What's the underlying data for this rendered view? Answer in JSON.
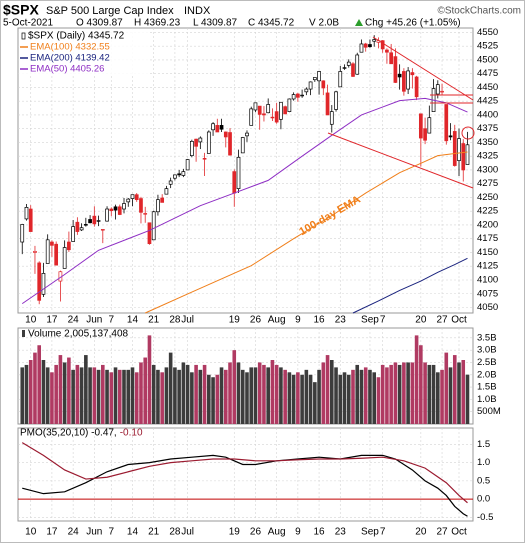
{
  "header": {
    "symbol": "$SPX",
    "name": "S&P 500 Large Cap Index",
    "exchange": "INDX",
    "credit": "©StockCharts.com",
    "date": "5-Oct-2021",
    "open": "O 4309.87",
    "high": "H 4369.23",
    "low": "L 4309.87",
    "close": "C 4345.72",
    "volume": "V 2.0B",
    "change": "Chg +45.26 (+1.05%)"
  },
  "chart_data": [
    {
      "type": "candlestick",
      "name": "$SPX (Daily) 4345.72",
      "up_color": "#000000",
      "down_color": "#e0262a",
      "open": [
        4169,
        4211,
        4229,
        4150,
        4131,
        4074,
        4130,
        4169,
        4165,
        4098,
        4121,
        4169,
        4170,
        4205,
        4191,
        4201,
        4210,
        4216,
        4207,
        4191,
        4207,
        4229,
        4233,
        4233,
        4229,
        4242,
        4248,
        4255,
        4248,
        4220,
        4204,
        4173,
        4224,
        4249,
        4256,
        4274,
        4285,
        4293,
        4290,
        4300,
        4326,
        4356,
        4351,
        4321,
        4330,
        4373,
        4381,
        4381,
        4369,
        4368,
        4297,
        4266,
        4331,
        4362,
        4381,
        4409,
        4416,
        4402,
        4404,
        4396,
        4406,
        4392,
        4415,
        4406,
        4429,
        4438,
        4436,
        4442,
        4447,
        4464,
        4462,
        4462,
        4440,
        4383,
        4410,
        4451,
        4485,
        4490,
        4493,
        4474,
        4514,
        4529,
        4528,
        4534,
        4532,
        4535,
        4518,
        4513,
        4506,
        4474,
        4479,
        4447,
        4477,
        4469,
        4402,
        4375,
        4367,
        4406,
        4438,
        4443,
        4419,
        4362,
        4370,
        4317,
        4348,
        4309.87
      ],
      "high": [
        4202,
        4238,
        4236,
        4162,
        4134,
        4131,
        4183,
        4172,
        4170,
        4117,
        4172,
        4188,
        4209,
        4214,
        4203,
        4213,
        4218,
        4234,
        4217,
        4192,
        4234,
        4232,
        4237,
        4237,
        4249,
        4249,
        4255,
        4258,
        4251,
        4233,
        4204,
        4226,
        4255,
        4256,
        4271,
        4286,
        4292,
        4300,
        4302,
        4320,
        4355,
        4357,
        4361,
        4331,
        4372,
        4387,
        4393,
        4393,
        4370,
        4376,
        4301,
        4337,
        4360,
        4372,
        4415,
        4422,
        4416,
        4416,
        4430,
        4412,
        4422,
        4423,
        4417,
        4430,
        4441,
        4440,
        4446,
        4450,
        4461,
        4468,
        4480,
        4463,
        4455,
        4418,
        4444,
        4489,
        4492,
        4501,
        4496,
        4513,
        4537,
        4531,
        4537,
        4545,
        4541,
        4536,
        4521,
        4529,
        4521,
        4492,
        4485,
        4487,
        4485,
        4471,
        4402,
        4395,
        4417,
        4465,
        4463,
        4457,
        4419,
        4385,
        4382,
        4375,
        4356,
        4369.23
      ],
      "low": [
        4147,
        4208,
        4188,
        4111,
        4056,
        4069,
        4130,
        4142,
        4127,
        4061,
        4121,
        4151,
        4170,
        4182,
        4189,
        4197,
        4203,
        4197,
        4198,
        4167,
        4206,
        4216,
        4210,
        4218,
        4221,
        4233,
        4234,
        4242,
        4203,
        4204,
        4164,
        4173,
        4217,
        4241,
        4256,
        4267,
        4281,
        4287,
        4287,
        4300,
        4323,
        4315,
        4338,
        4289,
        4330,
        4362,
        4369,
        4369,
        4341,
        4326,
        4233,
        4258,
        4331,
        4351,
        4381,
        4405,
        4373,
        4388,
        4403,
        4389,
        4384,
        4374,
        4401,
        4405,
        4426,
        4424,
        4431,
        4436,
        4436,
        4460,
        4437,
        4436,
        4400,
        4368,
        4406,
        4451,
        4482,
        4486,
        4469,
        4473,
        4514,
        4515,
        4522,
        4524,
        4521,
        4513,
        4493,
        4493,
        4458,
        4446,
        4435,
        4438,
        4448,
        4427,
        4306,
        4347,
        4367,
        4406,
        4430,
        4437,
        4346,
        4354,
        4306,
        4289,
        4279,
        4309.87
      ],
      "close": [
        4201,
        4232,
        4188,
        4152,
        4063,
        4112,
        4173,
        4163,
        4127,
        4115,
        4159,
        4155,
        4197,
        4188,
        4195,
        4200,
        4204,
        4202,
        4208,
        4192,
        4229,
        4226,
        4227,
        4219,
        4239,
        4247,
        4255,
        4246,
        4223,
        4221,
        4166,
        4224,
        4246,
        4241,
        4266,
        4280,
        4291,
        4291,
        4297,
        4319,
        4352,
        4343,
        4358,
        4320,
        4369,
        4384,
        4369,
        4374,
        4360,
        4327,
        4258,
        4323,
        4359,
        4367,
        4411,
        4422,
        4401,
        4400,
        4419,
        4395,
        4387,
        4423,
        4402,
        4429,
        4437,
        4432,
        4436,
        4447,
        4460,
        4468,
        4479,
        4449,
        4400,
        4406,
        4442,
        4479,
        4486,
        4496,
        4470,
        4509,
        4529,
        4523,
        4524,
        4537,
        4535,
        4520,
        4514,
        4493,
        4459,
        4469,
        4443,
        4480,
        4473,
        4433,
        4358,
        4354,
        4395,
        4448,
        4455,
        4443,
        4353,
        4360,
        4308,
        4357,
        4300,
        4345.72
      ],
      "lines": [
        {
          "name": "EMA(100) 4332.55",
          "color": "#f07f1a",
          "x": [
            29,
            40,
            54,
            64,
            73,
            81,
            89,
            94,
            98,
            102,
            105
          ],
          "values": [
            4040,
            4078,
            4126,
            4175,
            4217,
            4258,
            4295,
            4312,
            4326,
            4330,
            4332.55
          ]
        },
        {
          "name": "EMA(200) 4139.42",
          "color": "#1a237e",
          "x": [
            78,
            84,
            89,
            94,
            98,
            102,
            105
          ],
          "values": [
            4040,
            4062,
            4081,
            4098,
            4114,
            4128,
            4139.42
          ]
        },
        {
          "name": "EMA(50) 4405.26",
          "color": "#8e2ec4",
          "x": [
            0,
            10,
            18,
            30,
            42,
            50,
            58,
            66,
            73,
            80,
            89,
            95,
            100,
            105
          ],
          "values": [
            4057,
            4110,
            4154,
            4190,
            4235,
            4258,
            4281,
            4325,
            4363,
            4400,
            4426,
            4430,
            4422,
            4405.26
          ]
        }
      ],
      "annotation": "100-day EMA",
      "xlim": [
        -1,
        106.3
      ],
      "xticks": [
        {
          "value": 2,
          "label": "10"
        },
        {
          "value": 7,
          "label": "17"
        },
        {
          "value": 12,
          "label": "24"
        },
        {
          "value": 17,
          "label": "Jun"
        },
        {
          "value": 21,
          "label": "7"
        },
        {
          "value": 26,
          "label": "14"
        },
        {
          "value": 31,
          "label": "21"
        },
        {
          "value": 36,
          "label": "28"
        },
        {
          "value": 39,
          "label": "Jul"
        },
        {
          "value": 50,
          "label": "19"
        },
        {
          "value": 55,
          "label": "26"
        },
        {
          "value": 60,
          "label": "Aug"
        },
        {
          "value": 65,
          "label": "9"
        },
        {
          "value": 70,
          "label": "16"
        },
        {
          "value": 75,
          "label": "23"
        },
        {
          "value": 82,
          "label": "Sep"
        },
        {
          "value": 85,
          "label": "7"
        },
        {
          "value": 94,
          "label": "20"
        },
        {
          "value": 99,
          "label": "27"
        },
        {
          "value": 103,
          "label": "Oct"
        }
      ],
      "ylim": [
        4040,
        4558
      ],
      "yticks": [
        4050,
        4075,
        4100,
        4125,
        4150,
        4175,
        4200,
        4225,
        4250,
        4275,
        4300,
        4325,
        4350,
        4375,
        4400,
        4425,
        4450,
        4475,
        4500,
        4525,
        4550
      ],
      "grid": true
    },
    {
      "type": "bar",
      "name": "Volume 2,005,137,408",
      "up_color": "#3c3c3c",
      "down_color": "#b03a62",
      "values": [
        2.3,
        2.4,
        2.6,
        2.9,
        3.2,
        2.6,
        2.3,
        2.1,
        2.4,
        2.8,
        2.5,
        2.7,
        2.2,
        2.4,
        2.3,
        2.8,
        2.3,
        2.3,
        2.2,
        2.4,
        2.2,
        2.1,
        2.3,
        2.2,
        2.2,
        2.2,
        2.3,
        2.1,
        2.5,
        2.7,
        3.6,
        2.4,
        2.2,
        2.1,
        2.3,
        2.9,
        2.3,
        2.2,
        2.5,
        2.4,
        2.1,
        2.4,
        2.2,
        2.4,
        2.0,
        1.9,
        2.0,
        2.3,
        2.2,
        2.5,
        3.0,
        2.5,
        2.2,
        2.1,
        2.3,
        2.3,
        2.5,
        2.4,
        2.3,
        2.6,
        2.4,
        2.3,
        2.2,
        2.1,
        2.0,
        2.1,
        2.0,
        2.2,
        2.0,
        1.7,
        2.2,
        2.5,
        2.8,
        2.6,
        2.3,
        2.0,
        2.1,
        2.0,
        2.2,
        2.4,
        2.2,
        2.3,
        2.2,
        2.1,
        1.9,
        2.4,
        2.3,
        2.4,
        2.5,
        2.4,
        2.5,
        2.5,
        2.5,
        3.6,
        3.2,
        2.5,
        2.4,
        2.4,
        2.1,
        2.2,
        2.9,
        2.3,
        2.8,
        2.5,
        2.6,
        2.005
      ],
      "ylim": [
        0,
        3.9
      ],
      "yticks": [
        {
          "value": 3.5,
          "label": "3.5B"
        },
        {
          "value": 3,
          "label": "3.0B"
        },
        {
          "value": 2.5,
          "label": "2.5B"
        },
        {
          "value": 2,
          "label": "2.0B"
        },
        {
          "value": 1.5,
          "label": "1.5B"
        },
        {
          "value": 1,
          "label": "1.0B"
        },
        {
          "value": 0.5,
          "label": "500M"
        }
      ],
      "grid": true
    },
    {
      "type": "line",
      "name": "PMO(35,20,10) -0.47,",
      "signal_name": "-0.10",
      "series": [
        {
          "color": "#000000",
          "x": [
            0,
            5,
            10,
            15,
            20,
            25,
            30,
            35,
            40,
            45,
            48,
            52,
            55,
            60,
            65,
            70,
            75,
            80,
            85,
            88,
            92,
            95,
            98,
            100,
            102,
            104,
            105
          ],
          "values": [
            0.3,
            0.15,
            0.2,
            0.45,
            0.75,
            0.95,
            1.0,
            1.1,
            1.15,
            1.2,
            1.15,
            0.95,
            0.95,
            1.05,
            1.1,
            1.15,
            1.1,
            1.2,
            1.2,
            1.1,
            0.8,
            0.5,
            0.3,
            0.1,
            -0.2,
            -0.4,
            -0.47
          ]
        },
        {
          "color": "#9b1b30",
          "x": [
            0,
            5,
            10,
            15,
            20,
            25,
            30,
            35,
            40,
            45,
            50,
            55,
            60,
            65,
            70,
            75,
            80,
            85,
            90,
            95,
            100,
            103,
            105
          ],
          "values": [
            1.55,
            1.2,
            0.8,
            0.55,
            0.6,
            0.75,
            0.9,
            1.0,
            1.05,
            1.1,
            1.1,
            1.05,
            1.05,
            1.08,
            1.1,
            1.1,
            1.12,
            1.15,
            1.05,
            0.85,
            0.45,
            0.1,
            -0.1
          ]
        }
      ],
      "zero_color": "#c00000",
      "ylim": [
        -0.6,
        1.95
      ],
      "yticks": [
        1.5,
        {
          "value": 1,
          "label": "1.0"
        },
        0.5,
        {
          "value": 0,
          "label": "0.0"
        },
        -0.5
      ],
      "grid": true
    }
  ]
}
